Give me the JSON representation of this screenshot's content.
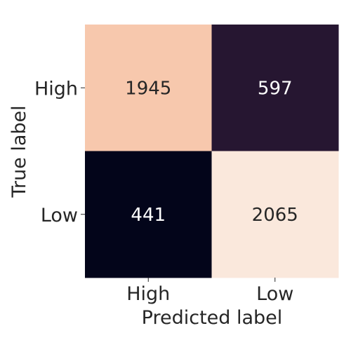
{
  "chart_data": {
    "type": "heatmap",
    "xlabel": "Predicted label",
    "ylabel": "True label",
    "x_categories": [
      "High",
      "Low"
    ],
    "y_categories": [
      "High",
      "Low"
    ],
    "values": [
      [
        1945,
        597
      ],
      [
        441,
        2065
      ]
    ],
    "colormap": "rocket",
    "colorbar": false,
    "cell_colors": [
      [
        "#f7c8ad",
        "#261631"
      ],
      [
        "#03051a",
        "#fae8dc"
      ]
    ],
    "annotation_colors": [
      [
        "#262626",
        "#ffffff"
      ],
      [
        "#ffffff",
        "#262626"
      ]
    ]
  }
}
